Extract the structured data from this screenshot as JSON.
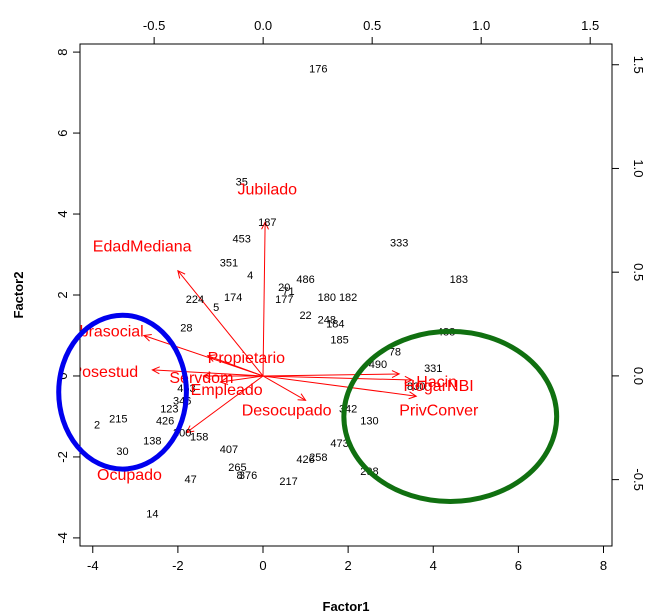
{
  "chart_data": {
    "type": "scatter",
    "subtype": "biplot",
    "xlabel": "Factor1",
    "ylabel": "Factor2",
    "xlim": [
      -4.3,
      8.2
    ],
    "ylim": [
      -4.2,
      8.2
    ],
    "xticks": [
      -4,
      -2,
      0,
      2,
      4,
      6,
      8
    ],
    "yticks": [
      -4,
      -2,
      0,
      2,
      4,
      6,
      8
    ],
    "x2lim": [
      -0.84,
      1.6
    ],
    "y2lim": [
      -0.82,
      1.6
    ],
    "x2ticks": [
      -0.5,
      0.0,
      0.5,
      1.0,
      1.5
    ],
    "y2ticks": [
      -0.5,
      0.0,
      0.5,
      1.0,
      1.5
    ],
    "x2ticklabels": [
      "-0.5",
      "0.0",
      "0.5",
      "1.0",
      "1.5"
    ],
    "y2ticklabels": [
      "-0.5",
      "0.0",
      "0.5",
      "1.0",
      "1.5"
    ],
    "colors": {
      "points": "#000000",
      "variables": "#ff0000",
      "ellipse_left": "#0000ee",
      "ellipse_right": "#107010"
    },
    "observations": [
      {
        "label": "176",
        "x": 1.3,
        "y": 7.6
      },
      {
        "label": "35",
        "x": -0.5,
        "y": 4.8
      },
      {
        "label": "187",
        "x": 0.1,
        "y": 3.8
      },
      {
        "label": "453",
        "x": -0.5,
        "y": 3.4
      },
      {
        "label": "333",
        "x": 3.2,
        "y": 3.3
      },
      {
        "label": "351",
        "x": -0.8,
        "y": 2.8
      },
      {
        "label": "183",
        "x": 4.6,
        "y": 2.4
      },
      {
        "label": "4",
        "x": -0.3,
        "y": 2.5
      },
      {
        "label": "486",
        "x": 1.0,
        "y": 2.4
      },
      {
        "label": "20",
        "x": 0.5,
        "y": 2.2
      },
      {
        "label": "71",
        "x": 0.6,
        "y": 2.1
      },
      {
        "label": "182",
        "x": 2.0,
        "y": 1.95
      },
      {
        "label": "180",
        "x": 1.5,
        "y": 1.95
      },
      {
        "label": "177",
        "x": 0.5,
        "y": 1.9
      },
      {
        "label": "174",
        "x": -0.7,
        "y": 1.95
      },
      {
        "label": "224",
        "x": -1.6,
        "y": 1.9
      },
      {
        "label": "5",
        "x": -1.1,
        "y": 1.7
      },
      {
        "label": "488",
        "x": 4.3,
        "y": 1.1
      },
      {
        "label": "28",
        "x": -1.8,
        "y": 1.2
      },
      {
        "label": "22",
        "x": 1.0,
        "y": 1.5
      },
      {
        "label": "248",
        "x": 1.5,
        "y": 1.4
      },
      {
        "label": "184",
        "x": 1.7,
        "y": 1.3
      },
      {
        "label": "185",
        "x": 1.8,
        "y": 0.9
      },
      {
        "label": "78",
        "x": 3.1,
        "y": 0.6
      },
      {
        "label": "490",
        "x": 2.7,
        "y": 0.3
      },
      {
        "label": "331",
        "x": 4.0,
        "y": 0.2
      },
      {
        "label": "830",
        "x": 3.6,
        "y": -0.25
      },
      {
        "label": "342",
        "x": 2.0,
        "y": -0.8
      },
      {
        "label": "130",
        "x": 2.5,
        "y": -1.1
      },
      {
        "label": "473",
        "x": 1.8,
        "y": -1.65
      },
      {
        "label": "258",
        "x": 1.3,
        "y": -2.0
      },
      {
        "label": "426",
        "x": 1.0,
        "y": -2.05
      },
      {
        "label": "298",
        "x": 2.5,
        "y": -2.35
      },
      {
        "label": "215",
        "x": -3.4,
        "y": -1.05
      },
      {
        "label": "2",
        "x": -3.9,
        "y": -1.2
      },
      {
        "label": "30",
        "x": -3.3,
        "y": -1.85
      },
      {
        "label": "138",
        "x": -2.6,
        "y": -1.6
      },
      {
        "label": "426",
        "x": -2.3,
        "y": -1.1
      },
      {
        "label": "123",
        "x": -2.2,
        "y": -0.8
      },
      {
        "label": "346",
        "x": -1.9,
        "y": -0.6
      },
      {
        "label": "453",
        "x": -1.8,
        "y": -0.3
      },
      {
        "label": "300",
        "x": -1.9,
        "y": -1.4
      },
      {
        "label": "158",
        "x": -1.5,
        "y": -1.5
      },
      {
        "label": "407",
        "x": -0.8,
        "y": -1.8
      },
      {
        "label": "265",
        "x": -0.6,
        "y": -2.25
      },
      {
        "label": "376",
        "x": -0.35,
        "y": -2.45
      },
      {
        "label": "8",
        "x": -0.55,
        "y": -2.45
      },
      {
        "label": "217",
        "x": 0.6,
        "y": -2.6
      },
      {
        "label": "47",
        "x": -1.7,
        "y": -2.55
      },
      {
        "label": "14",
        "x": -2.6,
        "y": -3.4
      }
    ],
    "variables": [
      {
        "label": "Jubilado",
        "x": 0.05,
        "y": 3.8,
        "label_x": -0.6,
        "label_y": 4.6
      },
      {
        "label": "EdadMediana",
        "x": -2.0,
        "y": 2.6,
        "label_x": -4.0,
        "label_y": 3.2
      },
      {
        "label": "Obrasocial",
        "x": -2.8,
        "y": 1.0,
        "label_x": -4.6,
        "label_y": 1.1
      },
      {
        "label": "Posestud",
        "x": -2.6,
        "y": 0.15,
        "label_x": -4.5,
        "label_y": 0.1
      },
      {
        "label": "Propietario",
        "x": -1.3,
        "y": 0.5,
        "label_x": -1.3,
        "label_y": 0.45
      },
      {
        "label": "Servdom",
        "x": -1.4,
        "y": 0.0,
        "label_x": -2.2,
        "label_y": -0.05
      },
      {
        "label": "Empleado",
        "x": -1.0,
        "y": -0.15,
        "label_x": -1.7,
        "label_y": -0.35
      },
      {
        "label": "Desocupado",
        "x": 1.0,
        "y": -0.6,
        "label_x": -0.5,
        "label_y": -0.85
      },
      {
        "label": "HogarNBI",
        "x": 3.5,
        "y": -0.1,
        "label_x": 3.3,
        "label_y": -0.25
      },
      {
        "label": "Hacin",
        "x": 3.2,
        "y": 0.05,
        "label_x": 3.6,
        "label_y": -0.15
      },
      {
        "label": "PrivConver",
        "x": 3.6,
        "y": -0.5,
        "label_x": 3.2,
        "label_y": -0.85
      },
      {
        "label": "Ocupado",
        "x": -1.8,
        "y": -1.4,
        "label_x": -3.9,
        "label_y": -2.45
      }
    ],
    "ellipses": [
      {
        "cx": -3.3,
        "cy": -0.4,
        "rx": 1.5,
        "ry": 1.9,
        "color": "ellipse_left"
      },
      {
        "cx": 4.4,
        "cy": -1.0,
        "rx": 2.5,
        "ry": 2.1,
        "color": "ellipse_right"
      }
    ]
  }
}
